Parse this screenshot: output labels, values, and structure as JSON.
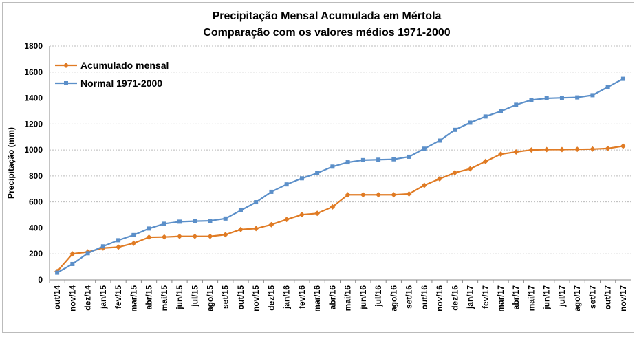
{
  "chart_data": {
    "type": "line",
    "title": "Precipitação Mensal Acumulada em Mértola",
    "subtitle": "Comparação com os valores médios 1971-2000",
    "y_label": "Precipitação (mm)",
    "categories": [
      "out/14",
      "nov/14",
      "dez/14",
      "jan/15",
      "fev/15",
      "mar/15",
      "abr/15",
      "mai/15",
      "jun/15",
      "jul/15",
      "ago/15",
      "set/15",
      "out/15",
      "nov/15",
      "dez/15",
      "jan/16",
      "fev/16",
      "mar/16",
      "abr/16",
      "mai/16",
      "jun/16",
      "jul/16",
      "ago/16",
      "set/16",
      "out/16",
      "nov/16",
      "dez/16",
      "jan/17",
      "fev/17",
      "mar/17",
      "abr/17",
      "mai/17",
      "jun/17",
      "jul/17",
      "ago/17",
      "set/17",
      "out/17",
      "nov/17"
    ],
    "series": [
      {
        "name": "Acumulado mensal",
        "color": "#e07b24",
        "marker": "diamond",
        "values": [
          65,
          200,
          215,
          245,
          252,
          282,
          328,
          330,
          335,
          335,
          335,
          348,
          388,
          395,
          425,
          465,
          502,
          512,
          562,
          655,
          655,
          655,
          655,
          662,
          728,
          778,
          825,
          855,
          912,
          968,
          985,
          1000,
          1003,
          1003,
          1005,
          1007,
          1012,
          1030
        ]
      },
      {
        "name": "Normal 1971-2000",
        "color": "#5b8fc9",
        "marker": "square",
        "values": [
          55,
          122,
          205,
          258,
          305,
          345,
          395,
          432,
          448,
          452,
          455,
          472,
          535,
          598,
          678,
          735,
          782,
          822,
          872,
          905,
          922,
          925,
          928,
          948,
          1010,
          1072,
          1155,
          1210,
          1258,
          1298,
          1348,
          1385,
          1398,
          1402,
          1405,
          1422,
          1485,
          1548
        ]
      }
    ],
    "ylim": [
      0,
      1800
    ],
    "yticks": [
      0,
      200,
      400,
      600,
      800,
      1000,
      1200,
      1400,
      1600,
      1800
    ],
    "grid": true,
    "legend": "upper-left"
  }
}
